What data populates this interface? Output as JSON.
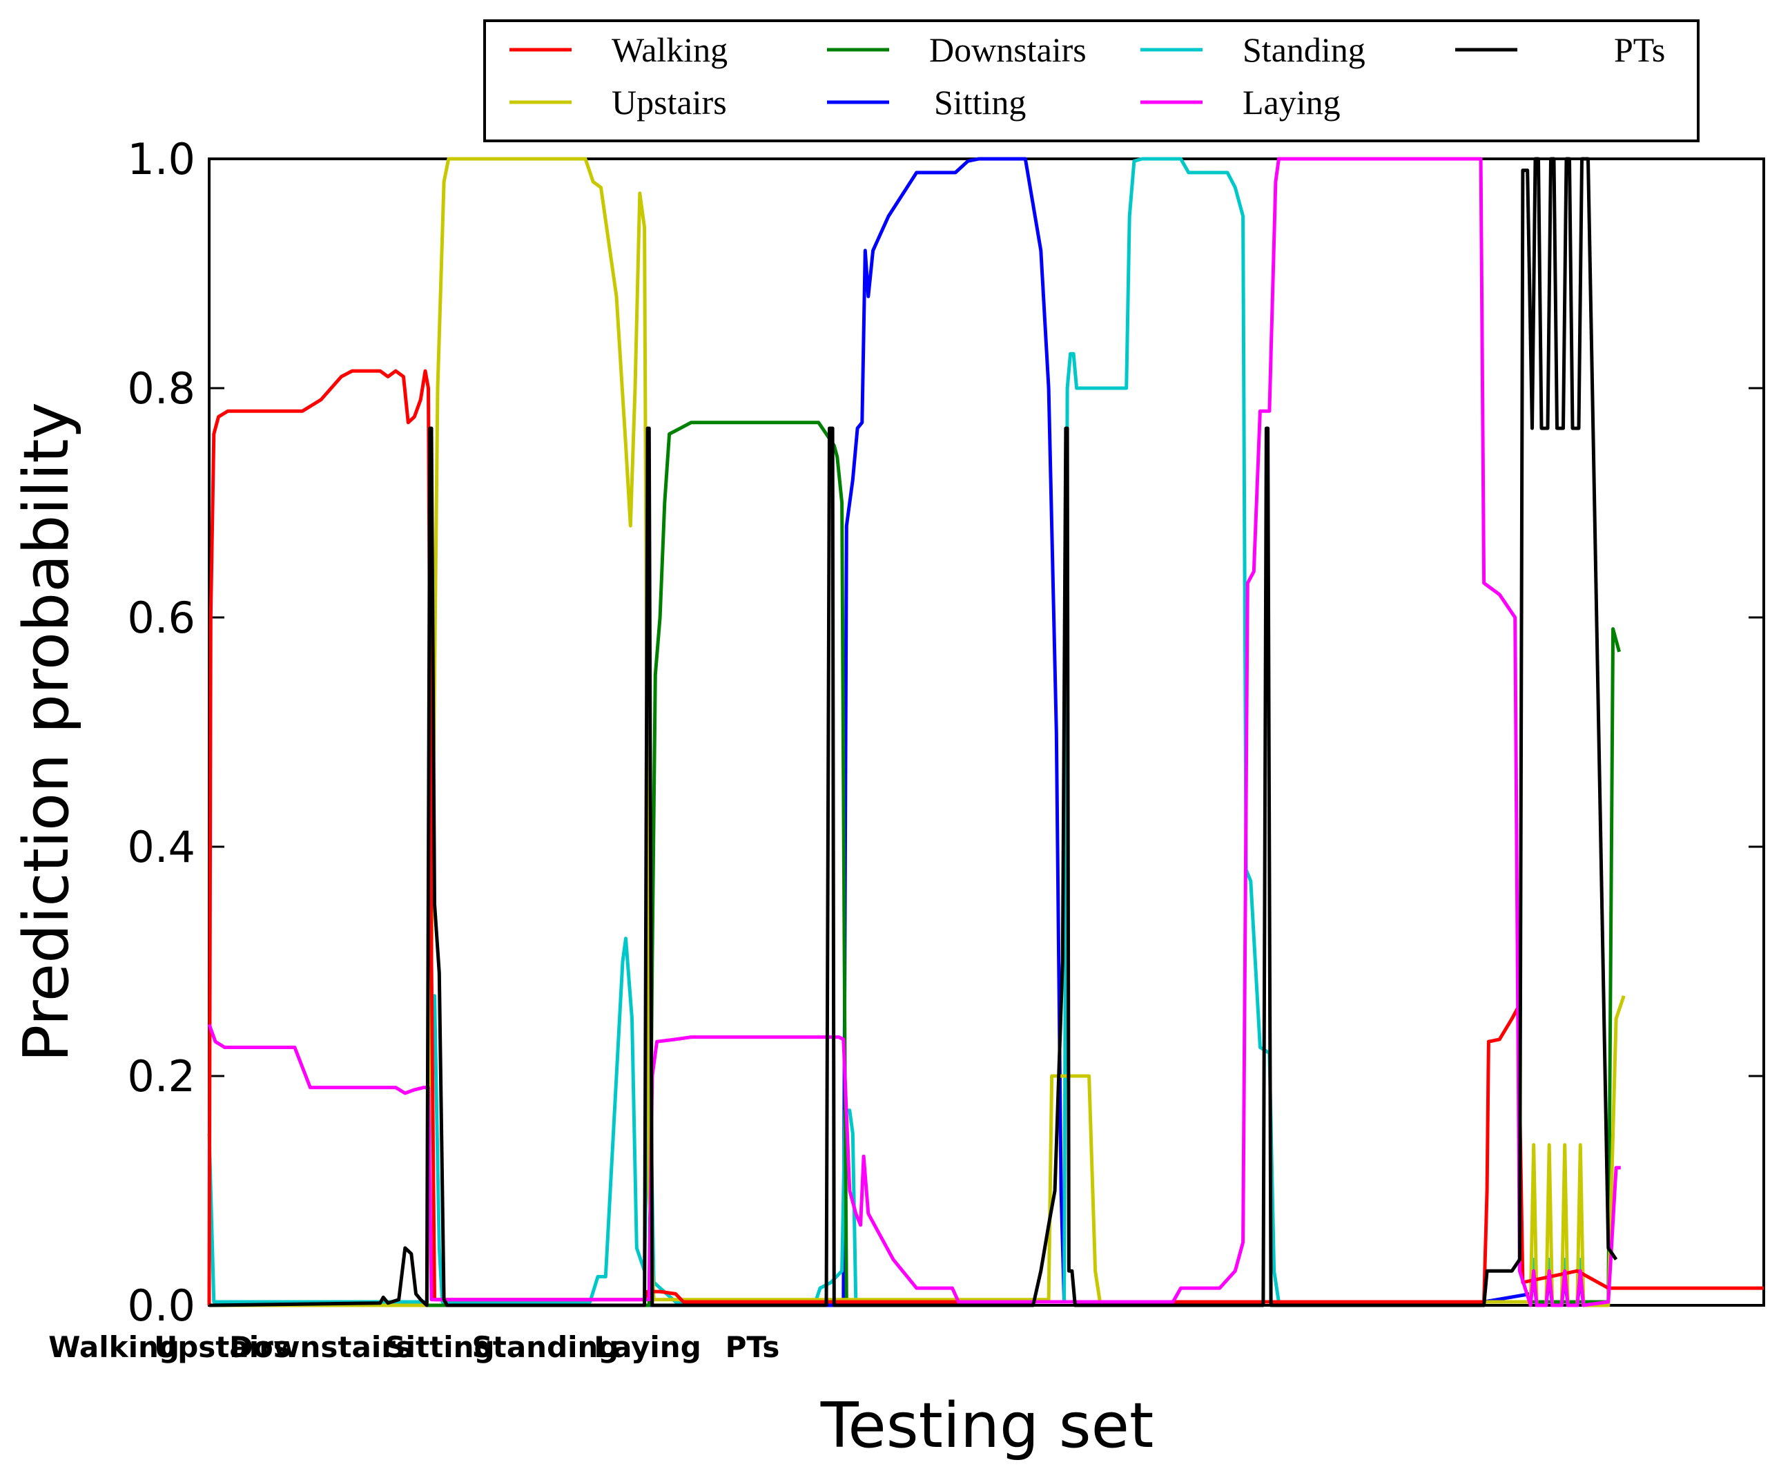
{
  "chart_data": {
    "type": "line",
    "xlabel": "Testing set",
    "ylabel": "Prediction probability",
    "ylim": [
      0,
      1
    ],
    "xlim": [
      0,
      1000
    ],
    "yticks": [
      "0.0",
      "0.2",
      "0.4",
      "0.6",
      "0.8",
      "1.0"
    ],
    "categories": [
      "Walking",
      "Upstairs",
      "Downstairs",
      "Sitting",
      "Standing",
      "Laying",
      "PTs"
    ],
    "grid": false,
    "legend_position": "top",
    "series": [
      {
        "name": "Walking",
        "color": "#ff0000",
        "points": [
          [
            0,
            0
          ],
          [
            1,
            0.6
          ],
          [
            3,
            0.76
          ],
          [
            6,
            0.775
          ],
          [
            12,
            0.78
          ],
          [
            60,
            0.78
          ],
          [
            72,
            0.79
          ],
          [
            85,
            0.81
          ],
          [
            92,
            0.815
          ],
          [
            110,
            0.815
          ],
          [
            115,
            0.81
          ],
          [
            120,
            0.815
          ],
          [
            125,
            0.81
          ],
          [
            128,
            0.77
          ],
          [
            132,
            0.775
          ],
          [
            136,
            0.79
          ],
          [
            139,
            0.815
          ],
          [
            141,
            0.8
          ],
          [
            143,
            0.3
          ],
          [
            145,
            0.005
          ],
          [
            280,
            0.005
          ],
          [
            282,
            0.012
          ],
          [
            290,
            0.012
          ],
          [
            300,
            0.01
          ],
          [
            305,
            0.003
          ],
          [
            820,
            0.003
          ],
          [
            822,
            0.1
          ],
          [
            823,
            0.23
          ],
          [
            830,
            0.232
          ],
          [
            838,
            0.25
          ],
          [
            842,
            0.26
          ],
          [
            845,
            0.02
          ],
          [
            880,
            0.03
          ],
          [
            900,
            0.015
          ],
          [
            1000,
            0.015
          ]
        ]
      },
      {
        "name": "Upstairs",
        "color": "#c8c800",
        "points": [
          [
            0,
            0
          ],
          [
            140,
            0
          ],
          [
            143,
            0.3
          ],
          [
            147,
            0.8
          ],
          [
            151,
            0.98
          ],
          [
            154,
            1.0
          ],
          [
            242,
            1.0
          ],
          [
            247,
            0.98
          ],
          [
            252,
            0.975
          ],
          [
            262,
            0.88
          ],
          [
            268,
            0.75
          ],
          [
            271,
            0.68
          ],
          [
            274,
            0.8
          ],
          [
            277,
            0.97
          ],
          [
            280,
            0.94
          ],
          [
            283,
            0.1
          ],
          [
            286,
            0.005
          ],
          [
            540,
            0.005
          ],
          [
            542,
            0.2
          ],
          [
            545,
            0.2
          ],
          [
            566,
            0.2
          ],
          [
            570,
            0.03
          ],
          [
            573,
            0.003
          ],
          [
            850,
            0.003
          ],
          [
            852,
            0.14
          ],
          [
            854,
            0.0
          ],
          [
            860,
            0.0
          ],
          [
            862,
            0.14
          ],
          [
            864,
            0.0
          ],
          [
            870,
            0.0
          ],
          [
            872,
            0.14
          ],
          [
            874,
            0.0
          ],
          [
            880,
            0.0
          ],
          [
            882,
            0.14
          ],
          [
            884,
            0.0
          ],
          [
            900,
            0.0
          ],
          [
            905,
            0.25
          ],
          [
            910,
            0.27
          ]
        ]
      },
      {
        "name": "Downstairs",
        "color": "#008000",
        "points": [
          [
            0,
            0
          ],
          [
            283,
            0
          ],
          [
            285,
            0.3
          ],
          [
            287,
            0.55
          ],
          [
            290,
            0.6
          ],
          [
            293,
            0.7
          ],
          [
            296,
            0.76
          ],
          [
            303,
            0.765
          ],
          [
            310,
            0.77
          ],
          [
            392,
            0.77
          ],
          [
            397,
            0.76
          ],
          [
            402,
            0.75
          ],
          [
            404,
            0.74
          ],
          [
            407,
            0.7
          ],
          [
            409,
            0.2
          ],
          [
            410,
            0.003
          ],
          [
            860,
            0.003
          ],
          [
            900,
            0.003
          ],
          [
            903,
            0.59
          ],
          [
            907,
            0.57
          ]
        ]
      },
      {
        "name": "Sitting",
        "color": "#0000ff",
        "points": [
          [
            0,
            0
          ],
          [
            408,
            0
          ],
          [
            410,
            0.68
          ],
          [
            414,
            0.72
          ],
          [
            417,
            0.765
          ],
          [
            420,
            0.77
          ],
          [
            422,
            0.92
          ],
          [
            424,
            0.88
          ],
          [
            427,
            0.92
          ],
          [
            437,
            0.95
          ],
          [
            455,
            0.988
          ],
          [
            480,
            0.988
          ],
          [
            488,
            0.998
          ],
          [
            495,
            1.0
          ],
          [
            525,
            1.0
          ],
          [
            535,
            0.92
          ],
          [
            540,
            0.8
          ],
          [
            545,
            0.5
          ],
          [
            548,
            0.1
          ],
          [
            550,
            0.003
          ],
          [
            820,
            0.003
          ],
          [
            850,
            0.01
          ],
          [
            852,
            0.025
          ],
          [
            854,
            0.0
          ],
          [
            860,
            0.0
          ],
          [
            862,
            0.025
          ],
          [
            864,
            0.0
          ],
          [
            870,
            0.0
          ],
          [
            872,
            0.025
          ],
          [
            874,
            0.0
          ],
          [
            880,
            0.0
          ],
          [
            882,
            0.025
          ],
          [
            884,
            0.0
          ],
          [
            900,
            0.003
          ]
        ]
      },
      {
        "name": "Standing",
        "color": "#00c8c8",
        "points": [
          [
            0,
            0.15
          ],
          [
            3,
            0.003
          ],
          [
            140,
            0.003
          ],
          [
            143,
            0.25
          ],
          [
            145,
            0.27
          ],
          [
            148,
            0.05
          ],
          [
            150,
            0.003
          ],
          [
            245,
            0.003
          ],
          [
            250,
            0.025
          ],
          [
            255,
            0.025
          ],
          [
            262,
            0.2
          ],
          [
            266,
            0.3
          ],
          [
            268,
            0.32
          ],
          [
            272,
            0.25
          ],
          [
            275,
            0.05
          ],
          [
            280,
            0.03
          ],
          [
            283,
            0.25
          ],
          [
            286,
            0.02
          ],
          [
            300,
            0.003
          ],
          [
            390,
            0.003
          ],
          [
            393,
            0.015
          ],
          [
            400,
            0.02
          ],
          [
            407,
            0.03
          ],
          [
            409,
            0.17
          ],
          [
            412,
            0.17
          ],
          [
            414,
            0.15
          ],
          [
            416,
            0.003
          ],
          [
            550,
            0.003
          ],
          [
            552,
            0.8
          ],
          [
            554,
            0.83
          ],
          [
            556,
            0.83
          ],
          [
            558,
            0.8
          ],
          [
            590,
            0.8
          ],
          [
            592,
            0.95
          ],
          [
            595,
            0.998
          ],
          [
            600,
            1.0
          ],
          [
            625,
            1.0
          ],
          [
            630,
            0.988
          ],
          [
            655,
            0.988
          ],
          [
            660,
            0.975
          ],
          [
            665,
            0.95
          ],
          [
            667,
            0.38
          ],
          [
            670,
            0.37
          ],
          [
            676,
            0.225
          ],
          [
            682,
            0.22
          ],
          [
            685,
            0.03
          ],
          [
            688,
            0.003
          ],
          [
            850,
            0.003
          ],
          [
            852,
            0.04
          ],
          [
            854,
            0.0
          ],
          [
            860,
            0.0
          ],
          [
            862,
            0.04
          ],
          [
            864,
            0.0
          ],
          [
            870,
            0.0
          ],
          [
            872,
            0.04
          ],
          [
            874,
            0.0
          ],
          [
            880,
            0.0
          ],
          [
            882,
            0.04
          ],
          [
            884,
            0.0
          ],
          [
            890,
            0.003
          ]
        ]
      },
      {
        "name": "Laying",
        "color": "#ff00ff",
        "points": [
          [
            0,
            0.245
          ],
          [
            4,
            0.23
          ],
          [
            10,
            0.225
          ],
          [
            55,
            0.225
          ],
          [
            65,
            0.19
          ],
          [
            120,
            0.19
          ],
          [
            126,
            0.185
          ],
          [
            132,
            0.188
          ],
          [
            138,
            0.19
          ],
          [
            141,
            0.19
          ],
          [
            143,
            0.005
          ],
          [
            283,
            0.005
          ],
          [
            285,
            0.2
          ],
          [
            288,
            0.23
          ],
          [
            300,
            0.232
          ],
          [
            310,
            0.234
          ],
          [
            405,
            0.234
          ],
          [
            408,
            0.232
          ],
          [
            412,
            0.1
          ],
          [
            416,
            0.08
          ],
          [
            419,
            0.07
          ],
          [
            421,
            0.13
          ],
          [
            424,
            0.08
          ],
          [
            440,
            0.04
          ],
          [
            455,
            0.015
          ],
          [
            478,
            0.015
          ],
          [
            482,
            0.003
          ],
          [
            620,
            0.003
          ],
          [
            625,
            0.015
          ],
          [
            650,
            0.015
          ],
          [
            660,
            0.03
          ],
          [
            665,
            0.055
          ],
          [
            668,
            0.63
          ],
          [
            672,
            0.64
          ],
          [
            676,
            0.78
          ],
          [
            682,
            0.78
          ],
          [
            686,
            0.98
          ],
          [
            688,
            1.0
          ],
          [
            708,
            1.0
          ],
          [
            818,
            1.0
          ],
          [
            820,
            0.63
          ],
          [
            830,
            0.62
          ],
          [
            840,
            0.6
          ],
          [
            843,
            0.03
          ],
          [
            850,
            0.0
          ],
          [
            852,
            0.03
          ],
          [
            854,
            0.0
          ],
          [
            860,
            0.0
          ],
          [
            862,
            0.03
          ],
          [
            864,
            0.0
          ],
          [
            870,
            0.0
          ],
          [
            872,
            0.03
          ],
          [
            874,
            0.0
          ],
          [
            880,
            0.0
          ],
          [
            882,
            0.03
          ],
          [
            884,
            0.0
          ],
          [
            900,
            0.003
          ],
          [
            905,
            0.12
          ],
          [
            908,
            0.12
          ]
        ]
      },
      {
        "name": "PTs",
        "color": "#000000",
        "points": [
          [
            0,
            0
          ],
          [
            110,
            0.002
          ],
          [
            112,
            0.007
          ],
          [
            115,
            0.002
          ],
          [
            122,
            0.005
          ],
          [
            126,
            0.05
          ],
          [
            130,
            0.045
          ],
          [
            133,
            0.01
          ],
          [
            136,
            0.005
          ],
          [
            140,
            0.0
          ],
          [
            142,
            0.765
          ],
          [
            143,
            0.765
          ],
          [
            145,
            0.35
          ],
          [
            148,
            0.29
          ],
          [
            151,
            0.005
          ],
          [
            153,
            0.0
          ],
          [
            280,
            0.0
          ],
          [
            282,
            0.765
          ],
          [
            283,
            0.765
          ],
          [
            285,
            0.0
          ],
          [
            397,
            0.0
          ],
          [
            399,
            0.765
          ],
          [
            401,
            0.765
          ],
          [
            402,
            0.0
          ],
          [
            530,
            0.0
          ],
          [
            535,
            0.03
          ],
          [
            540,
            0.07
          ],
          [
            544,
            0.1
          ],
          [
            549,
            0.3
          ],
          [
            551,
            0.765
          ],
          [
            552,
            0.765
          ],
          [
            553,
            0.03
          ],
          [
            555,
            0.03
          ],
          [
            557,
            0.0
          ],
          [
            678,
            0.0
          ],
          [
            680,
            0.765
          ],
          [
            681,
            0.765
          ],
          [
            683,
            0.0
          ],
          [
            820,
            0.0
          ],
          [
            822,
            0.03
          ],
          [
            838,
            0.03
          ],
          [
            843,
            0.04
          ],
          [
            845,
            0.99
          ],
          [
            848,
            0.99
          ],
          [
            851,
            0.765
          ],
          [
            853,
            1.0
          ],
          [
            855,
            1.0
          ],
          [
            857,
            0.765
          ],
          [
            861,
            0.765
          ],
          [
            863,
            1.0
          ],
          [
            865,
            1.0
          ],
          [
            867,
            0.765
          ],
          [
            871,
            0.765
          ],
          [
            873,
            1.0
          ],
          [
            875,
            1.0
          ],
          [
            877,
            0.765
          ],
          [
            881,
            0.765
          ],
          [
            883,
            1.0
          ],
          [
            887,
            1.0
          ],
          [
            900,
            0.05
          ],
          [
            905,
            0.04
          ]
        ]
      }
    ]
  }
}
